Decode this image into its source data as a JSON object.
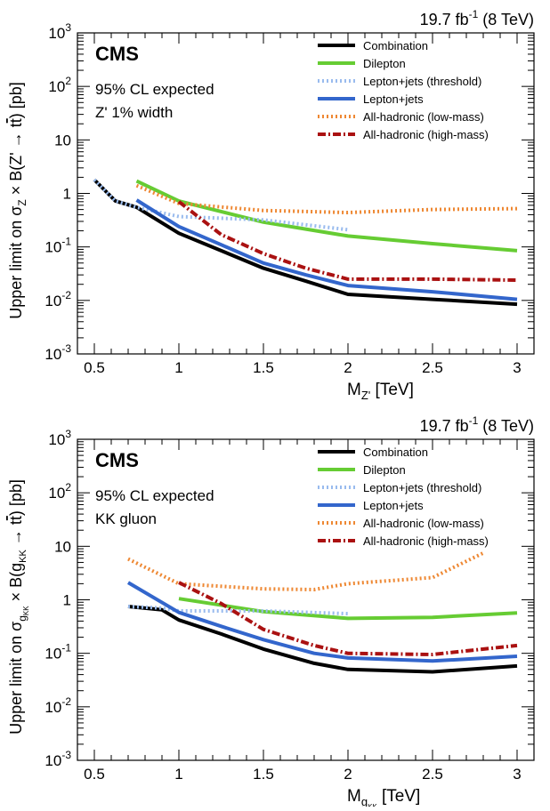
{
  "chart_data": [
    {
      "type": "line",
      "y_scale": "log",
      "xlim": [
        0.4,
        3.1
      ],
      "ylim": [
        0.001,
        1000
      ],
      "xticks": [
        "0.5",
        "1",
        "1.5",
        "2",
        "2.5",
        "3"
      ],
      "yticks": [
        {
          "value": 0.001,
          "base": "10",
          "exp": "-3"
        },
        {
          "value": 0.01,
          "base": "10",
          "exp": "-2"
        },
        {
          "value": 0.1,
          "base": "10",
          "exp": "-1"
        },
        {
          "value": 1,
          "base": "1",
          "exp": ""
        },
        {
          "value": 10,
          "base": "10",
          "exp": ""
        },
        {
          "value": 100,
          "base": "10",
          "exp": "2"
        },
        {
          "value": 1000,
          "base": "10",
          "exp": "3"
        }
      ],
      "lumi": {
        "pre": "19.7 fb",
        "sup": "-1",
        "post": " (8 TeV)"
      },
      "experiment": "CMS",
      "info_lines": [
        "95% CL expected",
        "Z' 1% width"
      ],
      "xlabel": {
        "main": "M",
        "sub": "Z'",
        "unit": " [TeV]"
      },
      "ylabel": {
        "pre": "Upper limit on σ",
        "sub": "Z",
        "mid": " × B(Z' → t",
        "tbar": "t",
        "post": ") [pb]"
      },
      "series": [
        {
          "name": "Combination",
          "color": "#000000",
          "dash": "solid",
          "x": [
            0.5,
            0.625,
            0.75,
            1.0,
            1.25,
            1.5,
            1.75,
            2.0,
            2.5,
            3.0
          ],
          "y": [
            1.8,
            0.72,
            0.55,
            0.18,
            0.085,
            0.04,
            0.023,
            0.013,
            0.0105,
            0.0085
          ]
        },
        {
          "name": "Dilepton",
          "color": "#66cc33",
          "dash": "solid",
          "x": [
            0.75,
            1.0,
            1.5,
            2.0,
            2.5,
            3.0
          ],
          "y": [
            1.7,
            0.72,
            0.29,
            0.16,
            0.115,
            0.085
          ]
        },
        {
          "name": "Lepton+jets (threshold)",
          "color": "#99bbee",
          "dash": "dot",
          "x": [
            0.5,
            0.625,
            0.75,
            1.0,
            1.5,
            2.0
          ],
          "y": [
            1.8,
            0.72,
            0.55,
            0.37,
            0.32,
            0.21
          ]
        },
        {
          "name": "Lepton+jets",
          "color": "#3366cc",
          "dash": "solid",
          "x": [
            0.75,
            1.0,
            1.25,
            1.5,
            1.75,
            2.0,
            2.5,
            3.0
          ],
          "y": [
            0.75,
            0.24,
            0.11,
            0.05,
            0.03,
            0.019,
            0.0145,
            0.0105
          ]
        },
        {
          "name": "All-hadronic (low-mass)",
          "color": "#ee8833",
          "dash": "dot",
          "x": [
            0.75,
            1.0,
            1.5,
            2.0,
            2.5,
            3.0
          ],
          "y": [
            1.4,
            0.65,
            0.48,
            0.44,
            0.5,
            0.52
          ]
        },
        {
          "name": "All-hadronic (high-mass)",
          "color": "#aa1111",
          "dash": "dashdot",
          "x": [
            1.0,
            1.25,
            1.5,
            1.75,
            2.0,
            2.5,
            3.0
          ],
          "y": [
            0.7,
            0.17,
            0.075,
            0.04,
            0.025,
            0.025,
            0.024
          ]
        }
      ]
    },
    {
      "type": "line",
      "y_scale": "log",
      "xlim": [
        0.4,
        3.1
      ],
      "ylim": [
        0.001,
        1000
      ],
      "xticks": [
        "0.5",
        "1",
        "1.5",
        "2",
        "2.5",
        "3"
      ],
      "yticks": [
        {
          "value": 0.001,
          "base": "10",
          "exp": "-3"
        },
        {
          "value": 0.01,
          "base": "10",
          "exp": "-2"
        },
        {
          "value": 0.1,
          "base": "10",
          "exp": "-1"
        },
        {
          "value": 1,
          "base": "1",
          "exp": ""
        },
        {
          "value": 10,
          "base": "10",
          "exp": ""
        },
        {
          "value": 100,
          "base": "10",
          "exp": "2"
        },
        {
          "value": 1000,
          "base": "10",
          "exp": "3"
        }
      ],
      "lumi": {
        "pre": "19.7 fb",
        "sup": "-1",
        "post": " (8 TeV)"
      },
      "experiment": "CMS",
      "info_lines": [
        "95% CL expected",
        "KK gluon"
      ],
      "xlabel": {
        "main": "M",
        "sub": "g",
        "subsub": "KK",
        "unit": " [TeV]"
      },
      "ylabel": {
        "pre": "Upper limit on σ",
        "sub": "g",
        "subsub": "KK",
        "mid": " × B(g",
        "sub2": "KK",
        "mid2": " → t",
        "tbar": "t",
        "post": ") [pb]"
      },
      "series": [
        {
          "name": "Combination",
          "color": "#000000",
          "dash": "solid",
          "x": [
            0.7,
            0.9,
            1.0,
            1.25,
            1.5,
            1.8,
            2.0,
            2.5,
            3.0
          ],
          "y": [
            0.75,
            0.65,
            0.42,
            0.23,
            0.12,
            0.065,
            0.05,
            0.045,
            0.058
          ]
        },
        {
          "name": "Dilepton",
          "color": "#66cc33",
          "dash": "solid",
          "x": [
            1.0,
            1.5,
            2.0,
            2.5,
            3.0
          ],
          "y": [
            1.05,
            0.6,
            0.45,
            0.47,
            0.57
          ]
        },
        {
          "name": "Lepton+jets (threshold)",
          "color": "#99bbee",
          "dash": "dot",
          "x": [
            0.7,
            0.9,
            1.0,
            1.5,
            2.0
          ],
          "y": [
            0.75,
            0.7,
            0.62,
            0.62,
            0.55
          ]
        },
        {
          "name": "Lepton+jets",
          "color": "#3366cc",
          "dash": "solid",
          "x": [
            0.7,
            1.0,
            1.25,
            1.5,
            1.8,
            2.0,
            2.5,
            3.0
          ],
          "y": [
            2.1,
            0.58,
            0.32,
            0.18,
            0.1,
            0.082,
            0.072,
            0.088
          ]
        },
        {
          "name": "All-hadronic (low-mass)",
          "color": "#ee8833",
          "dash": "dot",
          "x": [
            0.7,
            1.0,
            1.5,
            1.8,
            2.0,
            2.5,
            2.8
          ],
          "y": [
            5.8,
            2.0,
            1.6,
            1.55,
            2.0,
            2.6,
            7.5
          ]
        },
        {
          "name": "All-hadronic (high-mass)",
          "color": "#aa1111",
          "dash": "dashdot",
          "x": [
            1.0,
            1.25,
            1.5,
            1.8,
            2.0,
            2.5,
            3.0
          ],
          "y": [
            2.1,
            0.85,
            0.28,
            0.14,
            0.1,
            0.095,
            0.14
          ]
        }
      ]
    }
  ]
}
